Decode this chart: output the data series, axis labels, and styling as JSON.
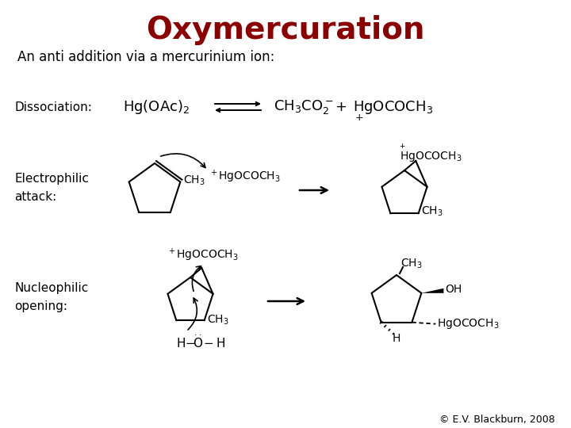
{
  "title": "Oxymercuration",
  "title_color": "#8B0000",
  "title_fontsize": 28,
  "subtitle": "An anti addition via a mercurinium ion:",
  "subtitle_fontsize": 12,
  "bg_color": "#FFFFFF",
  "copyright": "© E.V. Blackburn, 2008",
  "copyright_fontsize": 9,
  "label_fontsize": 11
}
